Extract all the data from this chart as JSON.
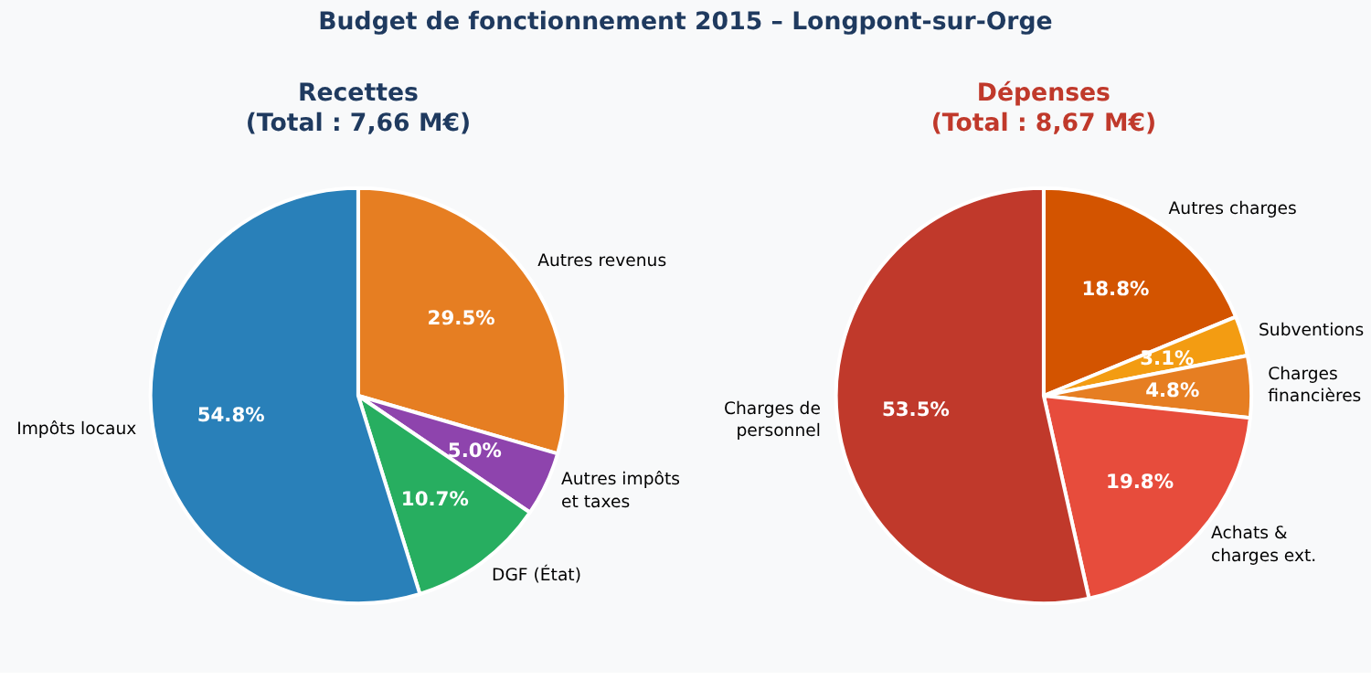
{
  "chart_data": [
    {
      "type": "pie",
      "title": "Budget de fonctionnement 2015 – Longpont-sur-Orge",
      "subtitle": "Recettes\n(Total : 7,66 M€)",
      "categories": [
        "Autres revenus",
        "Autres impôts\net taxes",
        "DGF (État)",
        "Impôts locaux"
      ],
      "values": [
        29.5,
        5.0,
        10.7,
        54.8
      ],
      "value_labels": [
        "29.5%",
        "5.0%",
        "10.7%",
        "54.8%"
      ],
      "colors": [
        "#e67e22",
        "#8e44ad",
        "#27ae60",
        "#2980b9"
      ]
    },
    {
      "type": "pie",
      "subtitle": "Dépenses\n(Total : 8,67 M€)",
      "categories": [
        "Autres charges",
        "Subventions",
        "Charges\nfinancières",
        "Achats &\ncharges ext.",
        "Charges de\npersonnel"
      ],
      "values": [
        18.8,
        3.1,
        4.8,
        19.8,
        53.5
      ],
      "value_labels": [
        "18.8%",
        "3.1%",
        "4.8%",
        "19.8%",
        "53.5%"
      ],
      "colors": [
        "#d35400",
        "#f39c12",
        "#e67e22",
        "#e74c3c",
        "#c0392b"
      ]
    }
  ]
}
